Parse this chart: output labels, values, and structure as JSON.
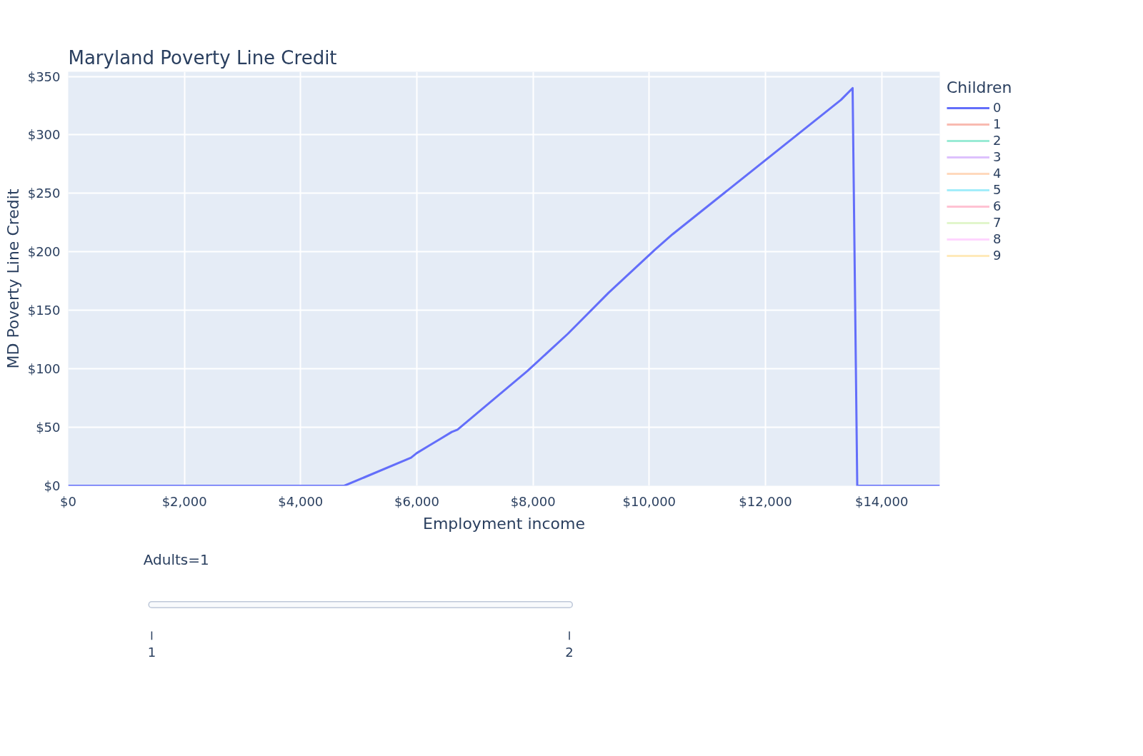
{
  "chart_data": {
    "type": "line",
    "title": "Maryland Poverty Line Credit",
    "xlabel": "Employment income",
    "ylabel": "MD Poverty Line Credit",
    "legend_title": "Children",
    "legend": "top right",
    "xlim": [
      0,
      15000
    ],
    "ylim": [
      0,
      354
    ],
    "xticks": [
      {
        "value": 0,
        "label": "$0"
      },
      {
        "value": 2000,
        "label": "$2,000"
      },
      {
        "value": 4000,
        "label": "$4,000"
      },
      {
        "value": 6000,
        "label": "$6,000"
      },
      {
        "value": 8000,
        "label": "$8,000"
      },
      {
        "value": 10000,
        "label": "$10,000"
      },
      {
        "value": 12000,
        "label": "$12,000"
      },
      {
        "value": 14000,
        "label": "$14,000"
      }
    ],
    "yticks": [
      {
        "value": 0,
        "label": "$0"
      },
      {
        "value": 50,
        "label": "$50"
      },
      {
        "value": 100,
        "label": "$100"
      },
      {
        "value": 150,
        "label": "$150"
      },
      {
        "value": 200,
        "label": "$200"
      },
      {
        "value": 250,
        "label": "$250"
      },
      {
        "value": 300,
        "label": "$300"
      },
      {
        "value": 350,
        "label": "$350"
      }
    ],
    "grid": true,
    "series": [
      {
        "name": "0",
        "color": "#636efa",
        "x": [
          0,
          4750,
          5900,
          6000,
          6200,
          6400,
          6600,
          6700,
          7900,
          8600,
          9300,
          10100,
          10400,
          13300,
          13500,
          13580,
          15000
        ],
        "values": [
          0,
          0,
          24,
          28,
          34,
          40,
          46,
          48,
          98,
          130,
          165,
          202,
          215,
          330,
          340,
          0,
          0
        ]
      },
      {
        "name": "1",
        "color": "#ef553b"
      },
      {
        "name": "2",
        "color": "#00cc96"
      },
      {
        "name": "3",
        "color": "#ab63fa"
      },
      {
        "name": "4",
        "color": "#ffa15a"
      },
      {
        "name": "5",
        "color": "#19d3f3"
      },
      {
        "name": "6",
        "color": "#ff6692"
      },
      {
        "name": "7",
        "color": "#b6e880"
      },
      {
        "name": "8",
        "color": "#ff97ff"
      },
      {
        "name": "9",
        "color": "#fecb52"
      }
    ],
    "annotations": [
      "Adults=1",
      "1",
      "2"
    ]
  }
}
